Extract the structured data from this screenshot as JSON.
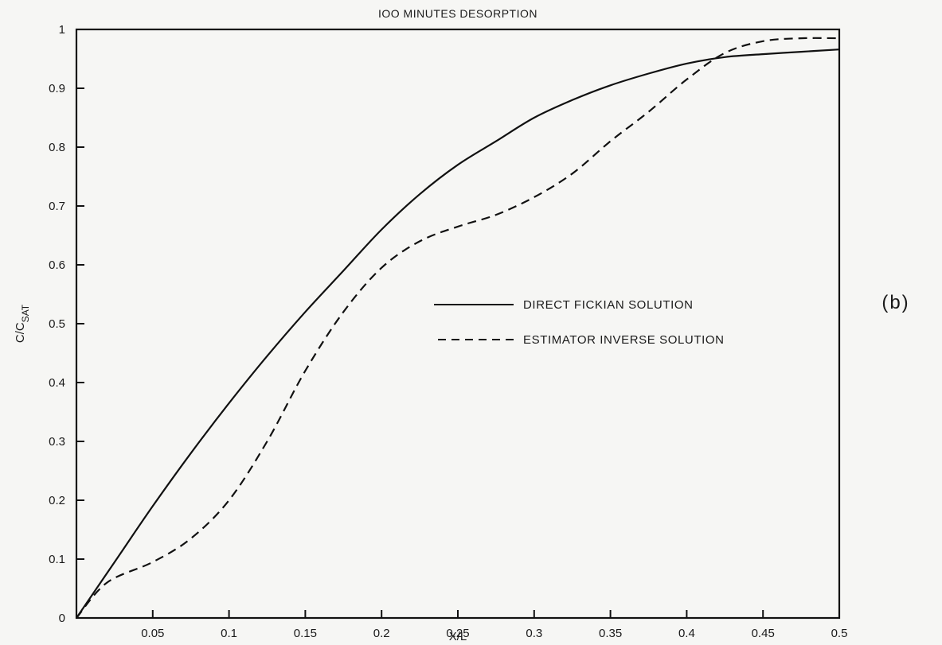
{
  "chart_data": {
    "type": "line",
    "title": "IOO MINUTES DESORPTION",
    "xlabel": "X/L",
    "ylabel": "C/C",
    "ylabel_sub": "SAT",
    "xlim": [
      0,
      0.5
    ],
    "ylim": [
      0,
      1
    ],
    "x_ticks": [
      {
        "value": 0.05,
        "label": "0.05"
      },
      {
        "value": 0.1,
        "label": "0.1"
      },
      {
        "value": 0.15,
        "label": "0.15"
      },
      {
        "value": 0.2,
        "label": "0.2"
      },
      {
        "value": 0.25,
        "label": "0.25"
      },
      {
        "value": 0.3,
        "label": "0.3"
      },
      {
        "value": 0.35,
        "label": "0.35"
      },
      {
        "value": 0.4,
        "label": "0.4"
      },
      {
        "value": 0.45,
        "label": "0.45"
      },
      {
        "value": 0.5,
        "label": "0.5"
      }
    ],
    "y_ticks": [
      {
        "value": 0,
        "label": "0"
      },
      {
        "value": 0.1,
        "label": "0.1"
      },
      {
        "value": 0.2,
        "label": "0.2"
      },
      {
        "value": 0.3,
        "label": "0.3"
      },
      {
        "value": 0.4,
        "label": "0.4"
      },
      {
        "value": 0.5,
        "label": "0.5"
      },
      {
        "value": 0.6,
        "label": "0.6"
      },
      {
        "value": 0.7,
        "label": "0.7"
      },
      {
        "value": 0.8,
        "label": "0.8"
      },
      {
        "value": 0.9,
        "label": "0.9"
      },
      {
        "value": 1,
        "label": "1"
      }
    ],
    "grid": false,
    "legend_position": "center-right",
    "panel_label": "(b)",
    "series": [
      {
        "name": "DIRECT FICKIAN SOLUTION",
        "style": "solid",
        "color": "#111111",
        "points": [
          [
            0.0,
            0.0
          ],
          [
            0.025,
            0.095
          ],
          [
            0.05,
            0.19
          ],
          [
            0.075,
            0.28
          ],
          [
            0.1,
            0.365
          ],
          [
            0.125,
            0.445
          ],
          [
            0.15,
            0.52
          ],
          [
            0.175,
            0.59
          ],
          [
            0.2,
            0.66
          ],
          [
            0.225,
            0.72
          ],
          [
            0.25,
            0.77
          ],
          [
            0.275,
            0.81
          ],
          [
            0.3,
            0.85
          ],
          [
            0.325,
            0.88
          ],
          [
            0.35,
            0.905
          ],
          [
            0.375,
            0.925
          ],
          [
            0.4,
            0.942
          ],
          [
            0.425,
            0.953
          ],
          [
            0.45,
            0.958
          ],
          [
            0.475,
            0.962
          ],
          [
            0.5,
            0.966
          ]
        ]
      },
      {
        "name": "ESTIMATOR INVERSE SOLUTION",
        "style": "dashed",
        "color": "#111111",
        "points": [
          [
            0.0,
            0.0
          ],
          [
            0.02,
            0.06
          ],
          [
            0.05,
            0.095
          ],
          [
            0.075,
            0.135
          ],
          [
            0.1,
            0.2
          ],
          [
            0.125,
            0.3
          ],
          [
            0.15,
            0.42
          ],
          [
            0.175,
            0.52
          ],
          [
            0.2,
            0.595
          ],
          [
            0.225,
            0.64
          ],
          [
            0.25,
            0.665
          ],
          [
            0.275,
            0.685
          ],
          [
            0.3,
            0.715
          ],
          [
            0.325,
            0.755
          ],
          [
            0.35,
            0.81
          ],
          [
            0.375,
            0.86
          ],
          [
            0.4,
            0.915
          ],
          [
            0.425,
            0.96
          ],
          [
            0.45,
            0.98
          ],
          [
            0.475,
            0.985
          ],
          [
            0.5,
            0.985
          ]
        ]
      }
    ]
  }
}
